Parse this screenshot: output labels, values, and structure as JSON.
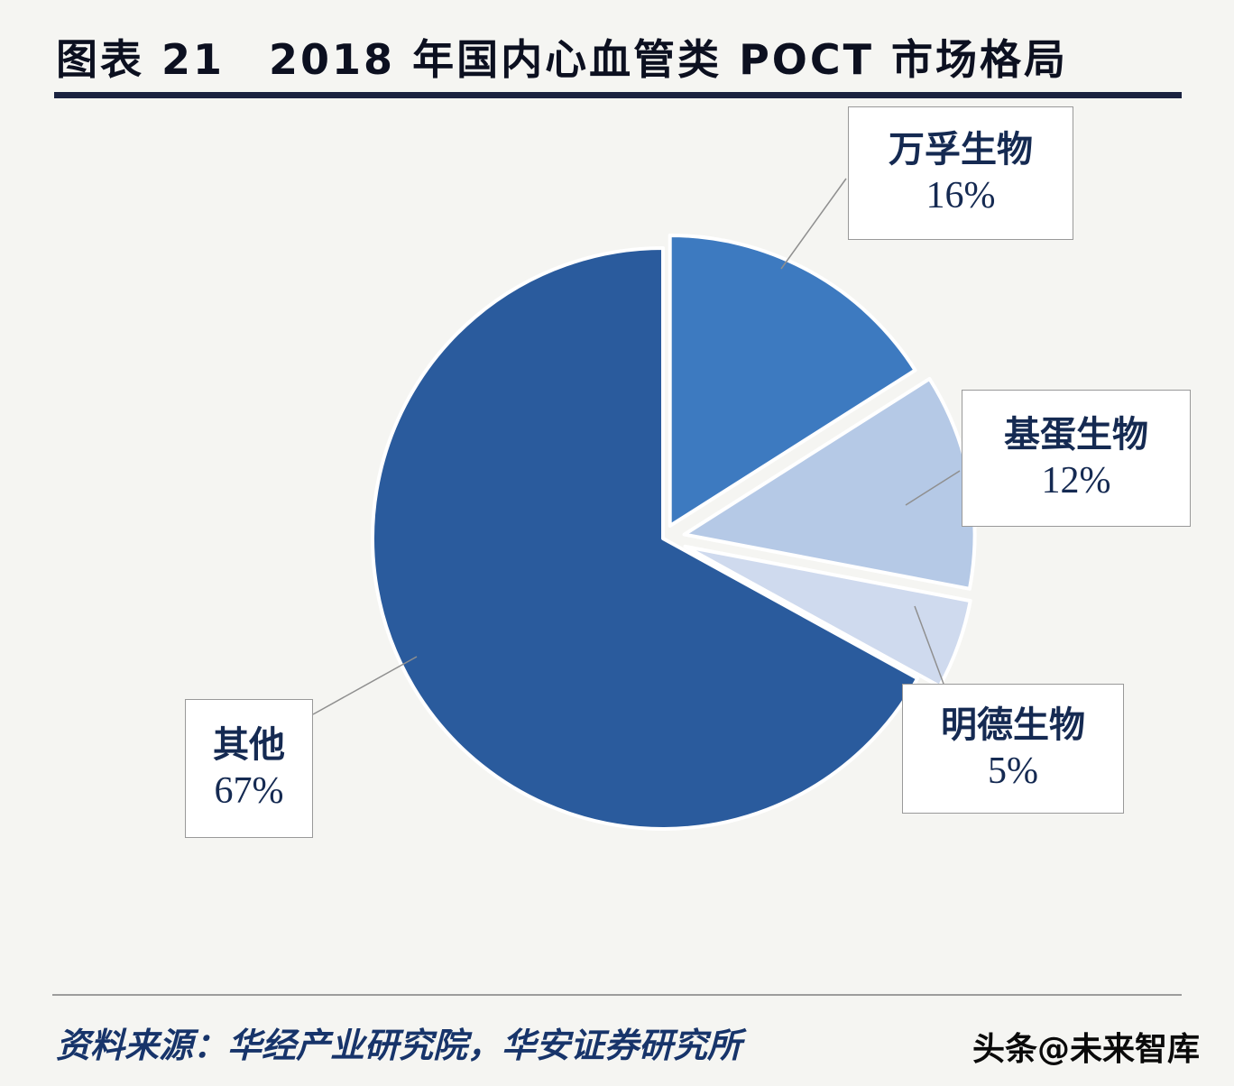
{
  "header": {
    "title": "图表 21　2018 年国内心血管类 POCT 市场格局",
    "underline_color": "#1a2240"
  },
  "chart_data": {
    "type": "pie",
    "title": "2018 年国内心血管类 POCT 市场格局",
    "start_angle_deg": 0,
    "direction": "clockwise",
    "legend_position": "callout-boxes",
    "slices": [
      {
        "label": "万孚生物",
        "value": 16,
        "percent_label": "16%",
        "color": "#3d7ac0"
      },
      {
        "label": "基蛋生物",
        "value": 12,
        "percent_label": "12%",
        "color": "#b5c9e6"
      },
      {
        "label": "明德生物",
        "value": 5,
        "percent_label": "5%",
        "color": "#cfdaee"
      },
      {
        "label": "其他",
        "value": 67,
        "percent_label": "67%",
        "color": "#2a5b9d"
      }
    ]
  },
  "footer": {
    "source": "资料来源：华经产业研究院，华安证券研究所",
    "watermark": "头条@未来智库"
  }
}
